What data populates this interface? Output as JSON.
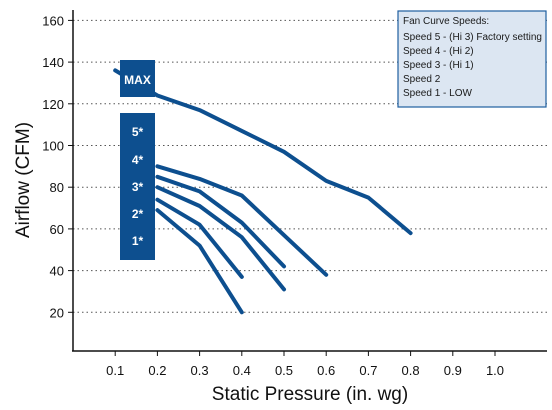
{
  "chart_data": {
    "type": "line",
    "xlabel": "Static Pressure (in. wg)",
    "ylabel": "Airflow (CFM)",
    "xlim": [
      0,
      1.0
    ],
    "ylim": [
      0,
      165
    ],
    "x_ticks": [
      0.1,
      0.2,
      0.3,
      0.4,
      0.5,
      0.6,
      0.7,
      0.8,
      0.9,
      1.0
    ],
    "x_tick_labels": [
      "0.1",
      "0.2",
      "0.3",
      "0.4",
      "0.5",
      "0.6",
      "0.7",
      "0.8",
      "0.9",
      "1.0"
    ],
    "y_ticks": [
      20,
      40,
      60,
      80,
      100,
      120,
      140,
      160
    ],
    "y_tick_labels": [
      "20",
      "40",
      "60",
      "80",
      "100",
      "120",
      "140",
      "160"
    ],
    "grid": "horizontal dotted",
    "line_color": "#0d4f8f",
    "label_box_color": "#0d4f8f",
    "series": [
      {
        "label": "MAX",
        "x": [
          0.1,
          0.2,
          0.3,
          0.4,
          0.5,
          0.6,
          0.7,
          0.8
        ],
        "y": [
          136,
          124,
          117,
          107,
          97,
          83,
          75,
          58
        ]
      },
      {
        "label": "5*",
        "x": [
          0.2,
          0.3,
          0.4,
          0.6
        ],
        "y": [
          90,
          84,
          76,
          38
        ]
      },
      {
        "label": "4*",
        "x": [
          0.2,
          0.3,
          0.4,
          0.5
        ],
        "y": [
          85,
          78,
          63,
          42
        ]
      },
      {
        "label": "3*",
        "x": [
          0.2,
          0.3,
          0.4,
          0.5
        ],
        "y": [
          80,
          71,
          56,
          31
        ]
      },
      {
        "label": "2*",
        "x": [
          0.2,
          0.3,
          0.4
        ],
        "y": [
          74,
          62,
          37
        ]
      },
      {
        "label": "1*",
        "x": [
          0.2,
          0.3,
          0.4
        ],
        "y": [
          69,
          52,
          20
        ]
      }
    ],
    "legend": {
      "position": "top-right",
      "title": "Fan Curve Speeds:",
      "items": [
        "Speed 5 - (Hi 3) Factory setting",
        "Speed 4 - (Hi 2)",
        "Speed 3 - (Hi 1)",
        "Speed 2",
        "Speed 1 - LOW"
      ],
      "background": "#dce6f2",
      "border": "#1f5fa0"
    }
  }
}
